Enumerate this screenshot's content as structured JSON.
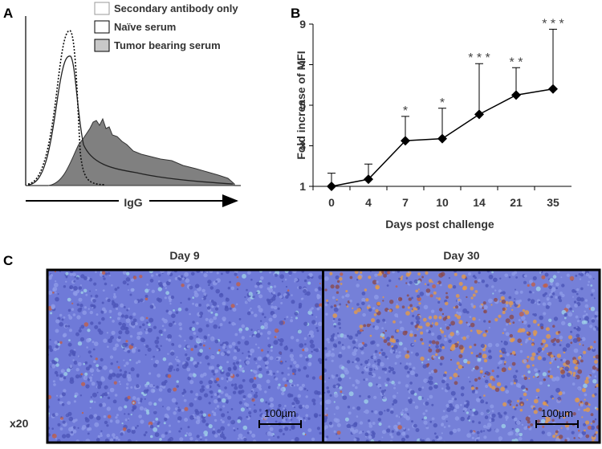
{
  "panel_a": {
    "panel_label": "A",
    "legend": [
      "Secondary antibody only",
      "Naïve serum",
      "Tumor bearing serum"
    ],
    "xlabel": "IgG"
  },
  "chart_data": {
    "type": "line",
    "panel_label": "B",
    "xlabel": "Days post challenge",
    "ylabel": "Fold increase of MFI",
    "categories": [
      "0",
      "4",
      "7",
      "10",
      "14",
      "21",
      "35"
    ],
    "series": [
      {
        "color": "#000000",
        "values": [
          1.0,
          1.35,
          3.25,
          3.35,
          4.55,
          5.5,
          5.8
        ],
        "errors": [
          0.65,
          0.75,
          1.2,
          1.5,
          2.5,
          1.35,
          2.95
        ],
        "significance": [
          null,
          null,
          "*",
          "*",
          "* * *",
          "* *",
          "* * *"
        ]
      }
    ],
    "ylim": [
      1,
      9
    ],
    "yticks": [
      1,
      3,
      5,
      7,
      9
    ]
  },
  "panel_c": {
    "panel_label": "C",
    "images": [
      {
        "title": "Day 9",
        "scale_bar": "100µm"
      },
      {
        "title": "Day 30",
        "scale_bar": "100µm"
      }
    ],
    "magnification": "x20"
  }
}
